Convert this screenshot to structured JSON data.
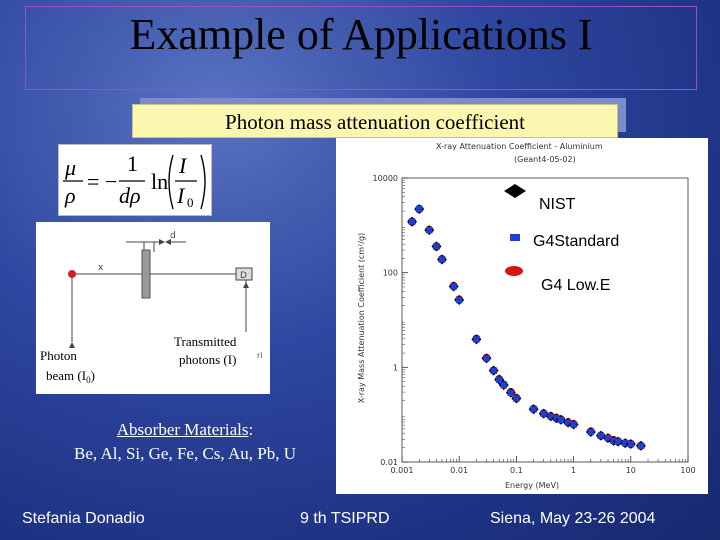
{
  "slide": {
    "title": "Example of Applications I",
    "subtitle": "Photon mass attenuation coefficient"
  },
  "formula": {
    "lhs_num": "μ",
    "lhs_den": "ρ",
    "eq": "= −",
    "frac_num": "1",
    "frac_den": "dρ",
    "ln": "ln",
    "arg_num": "I",
    "arg_den": "I",
    "arg_sub": "0"
  },
  "diagram": {
    "d_label": "d",
    "x_label": "x",
    "detector_label": "D",
    "source_label_line1": "Photon",
    "source_label_line2": "beam (I",
    "source_label_sub": "0",
    "source_label_end": ")",
    "transmitted_line1": "Transmitted",
    "transmitted_line2": "photons (I)",
    "extra_mark": "ri"
  },
  "legend": {
    "nist": "NIST",
    "g4standard": "G4Standard",
    "g4lowe": "G4 Low.E"
  },
  "absorber": {
    "heading": "Absorber Materials",
    "colon": ":",
    "list": "Be, Al, Si, Ge, Fe, Cs, Au, Pb, U"
  },
  "footer": {
    "author": "Stefania Donadio",
    "event": "9 th TSIPRD",
    "place_date": "Siena, May 23-26 2004"
  },
  "chart_data": {
    "type": "scatter",
    "title": "X-ray Attenuation Coefficient - Aluminium",
    "subtitle": "(Geant4-05-02)",
    "xlabel": "Energy (MeV)",
    "ylabel": "X-ray Mass Attenuation Coefficient (cm²/g)",
    "x_scale": "log",
    "y_scale": "log",
    "xlim": [
      0.001,
      100
    ],
    "ylim": [
      0.01,
      10000
    ],
    "x_ticks": [
      "0.001",
      "0.01",
      "0.1",
      "1",
      "10",
      "100"
    ],
    "y_ticks": [
      "10000",
      "100",
      "1",
      "0.01"
    ],
    "x": [
      0.0015,
      0.002,
      0.003,
      0.004,
      0.005,
      0.008,
      0.01,
      0.02,
      0.03,
      0.04,
      0.05,
      0.06,
      0.08,
      0.1,
      0.2,
      0.3,
      0.4,
      0.5,
      0.6,
      0.8,
      1,
      2,
      3,
      4,
      5,
      6,
      8,
      10,
      15
    ],
    "series": [
      {
        "name": "NIST",
        "color": "#000000",
        "values": [
          1200,
          2200,
          790,
          360,
          190,
          51,
          26.5,
          3.9,
          1.55,
          0.85,
          0.55,
          0.42,
          0.29,
          0.22,
          0.13,
          0.105,
          0.092,
          0.084,
          0.078,
          0.068,
          0.062,
          0.043,
          0.036,
          0.032,
          0.028,
          0.027,
          0.025,
          0.024,
          0.022
        ]
      },
      {
        "name": "G4Standard",
        "color": "#1f3fcf",
        "values": [
          1200,
          2200,
          790,
          360,
          190,
          51,
          26.5,
          3.9,
          1.55,
          0.85,
          0.55,
          0.42,
          0.29,
          0.22,
          0.13,
          0.105,
          0.092,
          0.084,
          0.078,
          0.068,
          0.062,
          0.043,
          0.036,
          0.032,
          0.028,
          0.027,
          0.025,
          0.024,
          0.022
        ]
      },
      {
        "name": "G4 Low.E",
        "color": "#dd1111",
        "values": [
          1190,
          2210,
          800,
          355,
          192,
          52,
          27,
          4.0,
          1.58,
          0.86,
          0.56,
          0.43,
          0.3,
          0.225,
          0.132,
          0.106,
          0.093,
          0.085,
          0.079,
          0.069,
          0.063,
          0.044,
          0.036,
          0.032,
          0.029,
          0.027,
          0.025,
          0.024,
          0.022
        ]
      }
    ],
    "grid": false,
    "legend_position": "right"
  },
  "colors": {
    "title_border": "#9a4fc8",
    "subtitle_bg": "#fbf7b0",
    "nist": "#000000",
    "g4standard": "#1f3fcf",
    "g4lowe": "#dd1111"
  }
}
